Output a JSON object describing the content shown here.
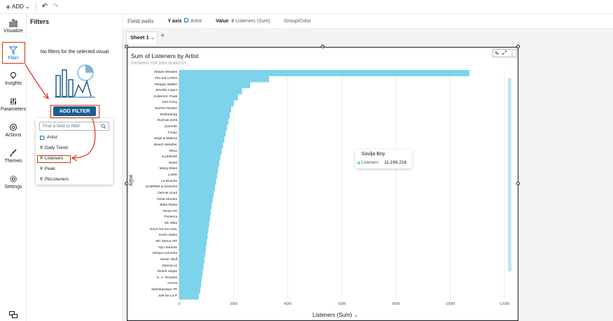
{
  "toolbar": {
    "add_label": "ADD"
  },
  "rail": {
    "items": [
      {
        "label": "Visualize"
      },
      {
        "label": "Filter"
      },
      {
        "label": "Insights"
      },
      {
        "label": "Parameters"
      },
      {
        "label": "Actions"
      },
      {
        "label": "Themes"
      },
      {
        "label": "Settings"
      }
    ]
  },
  "filters_panel": {
    "title": "Filters",
    "empty_message": "No filters for the selected visual",
    "add_filter_label": "ADD FILTER",
    "search_placeholder": "Find a field to filter",
    "fields": [
      {
        "name": "Artist",
        "kind": "dimension"
      },
      {
        "name": "Daily Trend",
        "kind": "measure"
      },
      {
        "name": "Listeners",
        "kind": "measure"
      },
      {
        "name": "Peak",
        "kind": "measure"
      },
      {
        "name": "PkListeners",
        "kind": "measure"
      }
    ]
  },
  "field_wells": {
    "title": "Field wells",
    "y_axis_label": "Y axis",
    "y_axis_value": "Artist",
    "value_label": "Value",
    "value_value": "Listeners (Sum)",
    "group_label": "Group/Color"
  },
  "sheets": {
    "active": "Sheet 1"
  },
  "visual": {
    "title": "Sum of Listeners by Artist",
    "subtitle": "SHOWING TOP 2500 IN ARTIST",
    "y_title": "Artist",
    "x_title": "Listeners (Sum)",
    "tooltip": {
      "title": "Soulja Boy",
      "label": "Listeners",
      "value": "11,166,216"
    }
  },
  "chart_data": {
    "type": "bar",
    "orientation": "horizontal",
    "categories": [
      "Shawn Mendes",
      "The Kid LAROI",
      "Morgan Wallen",
      "Jennifer Lopez",
      "Anderson .Paak",
      "Joel Corry",
      "Sachet Tandon",
      "Rusherking",
      "Rochak Kohli",
      "Joremith",
      "T-Pain",
      "Jorge & Mateus",
      "Beach Weather",
      "Riton",
      "ILLENIUM",
      "Noriel",
      "Missy Elliott",
      "LUMX",
      "La Bouche",
      "GAMPER & DADONI",
      "Dennis Lloyd",
      "Omar Montes",
      "Baby Rasta",
      "Kenia OS",
      "Fonseca",
      "Mc Mika",
      "RĂLFĂIS DU SOL",
      "Kevin Gates",
      "MC Menor MT",
      "Yiyo Sarante",
      "Keisya Levronka",
      "Xavier Wulf",
      "DannyLux",
      "Dimitri Vegas",
      "K. J. Yesudas",
      "Aruma",
      "Silambarasan TR",
      "Joel De La P"
    ],
    "values": [
      107000000,
      33000000,
      26000000,
      23000000,
      21500000,
      20000000,
      19000000,
      18500000,
      18000000,
      17500000,
      17000000,
      16500000,
      16000000,
      15500000,
      15000000,
      14600000,
      14200000,
      13800000,
      13400000,
      13000000,
      12600000,
      12200000,
      11800000,
      11500000,
      11200000,
      10900000,
      10600000,
      10300000,
      10000000,
      9700000,
      9400000,
      9100000,
      8800000,
      8500000,
      8200000,
      7900000,
      7600000,
      7000000
    ],
    "xticks": [
      "0",
      "20M",
      "40M",
      "60M",
      "80M",
      "100M",
      "120M"
    ],
    "xlim": [
      0,
      120000000
    ],
    "xlabel": "Listeners (Sum)",
    "ylabel": "Artist",
    "color": "#7dd2ec",
    "grid": true
  },
  "colors": {
    "accent": "#1b5f8c",
    "annotation": "#d13212",
    "bar": "#7dd2ec"
  }
}
